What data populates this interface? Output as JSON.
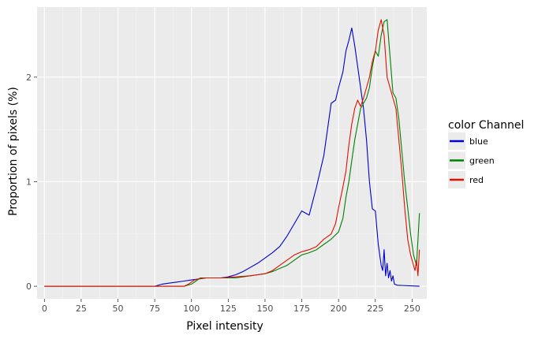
{
  "chart_data": {
    "type": "line",
    "title": "",
    "xlabel": "Pixel intensity",
    "ylabel": "Proportion of pixels (%)",
    "xlim": [
      -5,
      260
    ],
    "ylim": [
      -0.12,
      2.67
    ],
    "x_ticks": [
      0,
      25,
      50,
      75,
      100,
      125,
      150,
      175,
      200,
      225,
      250
    ],
    "x_tick_labels": [
      "0",
      "25",
      "50",
      "75",
      "100",
      "125",
      "150",
      "175",
      "200",
      "225",
      "250"
    ],
    "y_ticks": [
      0,
      1,
      2
    ],
    "y_tick_labels": [
      "0",
      "1",
      "2"
    ],
    "grid": true,
    "legend": {
      "title": "color Channel",
      "position": "right",
      "entries": [
        "blue",
        "green",
        "red"
      ]
    },
    "series": [
      {
        "name": "blue",
        "color": "#0000cc",
        "points": [
          [
            0,
            0
          ],
          [
            75,
            0
          ],
          [
            80,
            0.02
          ],
          [
            85,
            0.03
          ],
          [
            90,
            0.04
          ],
          [
            95,
            0.05
          ],
          [
            100,
            0.06
          ],
          [
            105,
            0.07
          ],
          [
            110,
            0.08
          ],
          [
            115,
            0.08
          ],
          [
            120,
            0.08
          ],
          [
            125,
            0.09
          ],
          [
            130,
            0.11
          ],
          [
            135,
            0.14
          ],
          [
            140,
            0.18
          ],
          [
            145,
            0.22
          ],
          [
            150,
            0.27
          ],
          [
            155,
            0.32
          ],
          [
            160,
            0.38
          ],
          [
            165,
            0.48
          ],
          [
            170,
            0.6
          ],
          [
            175,
            0.72
          ],
          [
            180,
            0.68
          ],
          [
            185,
            0.95
          ],
          [
            190,
            1.25
          ],
          [
            193,
            1.55
          ],
          [
            195,
            1.75
          ],
          [
            198,
            1.78
          ],
          [
            200,
            1.9
          ],
          [
            203,
            2.05
          ],
          [
            205,
            2.25
          ],
          [
            207,
            2.35
          ],
          [
            209,
            2.47
          ],
          [
            211,
            2.3
          ],
          [
            213,
            2.1
          ],
          [
            215,
            1.9
          ],
          [
            217,
            1.7
          ],
          [
            219,
            1.4
          ],
          [
            221,
            1.0
          ],
          [
            223,
            0.74
          ],
          [
            225,
            0.72
          ],
          [
            227,
            0.4
          ],
          [
            229,
            0.2
          ],
          [
            230,
            0.15
          ],
          [
            231,
            0.35
          ],
          [
            232,
            0.1
          ],
          [
            233,
            0.22
          ],
          [
            234,
            0.08
          ],
          [
            235,
            0.15
          ],
          [
            236,
            0.05
          ],
          [
            237,
            0.1
          ],
          [
            238,
            0.02
          ],
          [
            240,
            0.01
          ],
          [
            255,
            0
          ]
        ]
      },
      {
        "name": "green",
        "color": "#008000",
        "points": [
          [
            0,
            0
          ],
          [
            95,
            0
          ],
          [
            100,
            0.02
          ],
          [
            103,
            0.05
          ],
          [
            106,
            0.08
          ],
          [
            110,
            0.08
          ],
          [
            120,
            0.08
          ],
          [
            130,
            0.08
          ],
          [
            135,
            0.09
          ],
          [
            140,
            0.1
          ],
          [
            145,
            0.11
          ],
          [
            150,
            0.12
          ],
          [
            155,
            0.14
          ],
          [
            160,
            0.17
          ],
          [
            165,
            0.2
          ],
          [
            170,
            0.25
          ],
          [
            175,
            0.3
          ],
          [
            180,
            0.32
          ],
          [
            185,
            0.35
          ],
          [
            190,
            0.4
          ],
          [
            195,
            0.45
          ],
          [
            200,
            0.52
          ],
          [
            203,
            0.65
          ],
          [
            205,
            0.85
          ],
          [
            207,
            1.0
          ],
          [
            209,
            1.2
          ],
          [
            211,
            1.4
          ],
          [
            213,
            1.55
          ],
          [
            215,
            1.7
          ],
          [
            217,
            1.75
          ],
          [
            219,
            1.8
          ],
          [
            221,
            1.9
          ],
          [
            223,
            2.1
          ],
          [
            225,
            2.25
          ],
          [
            227,
            2.2
          ],
          [
            229,
            2.4
          ],
          [
            231,
            2.53
          ],
          [
            233,
            2.55
          ],
          [
            235,
            2.2
          ],
          [
            237,
            1.85
          ],
          [
            239,
            1.8
          ],
          [
            241,
            1.6
          ],
          [
            243,
            1.3
          ],
          [
            245,
            1.0
          ],
          [
            247,
            0.75
          ],
          [
            249,
            0.5
          ],
          [
            251,
            0.3
          ],
          [
            253,
            0.2
          ],
          [
            255,
            0.7
          ]
        ]
      },
      {
        "name": "red",
        "color": "#dd1100",
        "points": [
          [
            0,
            0
          ],
          [
            95,
            0
          ],
          [
            98,
            0.02
          ],
          [
            100,
            0.04
          ],
          [
            102,
            0.06
          ],
          [
            105,
            0.07
          ],
          [
            110,
            0.08
          ],
          [
            120,
            0.08
          ],
          [
            130,
            0.09
          ],
          [
            140,
            0.1
          ],
          [
            150,
            0.12
          ],
          [
            155,
            0.15
          ],
          [
            160,
            0.2
          ],
          [
            165,
            0.25
          ],
          [
            170,
            0.3
          ],
          [
            175,
            0.33
          ],
          [
            180,
            0.35
          ],
          [
            185,
            0.38
          ],
          [
            190,
            0.45
          ],
          [
            195,
            0.5
          ],
          [
            198,
            0.6
          ],
          [
            200,
            0.75
          ],
          [
            203,
            0.95
          ],
          [
            205,
            1.1
          ],
          [
            207,
            1.35
          ],
          [
            209,
            1.55
          ],
          [
            211,
            1.7
          ],
          [
            213,
            1.78
          ],
          [
            215,
            1.72
          ],
          [
            217,
            1.8
          ],
          [
            219,
            1.9
          ],
          [
            221,
            2.0
          ],
          [
            223,
            2.15
          ],
          [
            225,
            2.25
          ],
          [
            227,
            2.45
          ],
          [
            229,
            2.55
          ],
          [
            231,
            2.4
          ],
          [
            233,
            2.0
          ],
          [
            235,
            1.9
          ],
          [
            237,
            1.8
          ],
          [
            239,
            1.7
          ],
          [
            241,
            1.4
          ],
          [
            243,
            1.1
          ],
          [
            245,
            0.75
          ],
          [
            247,
            0.45
          ],
          [
            249,
            0.3
          ],
          [
            251,
            0.2
          ],
          [
            252,
            0.15
          ],
          [
            253,
            0.25
          ],
          [
            254,
            0.1
          ],
          [
            255,
            0.35
          ]
        ]
      }
    ]
  }
}
